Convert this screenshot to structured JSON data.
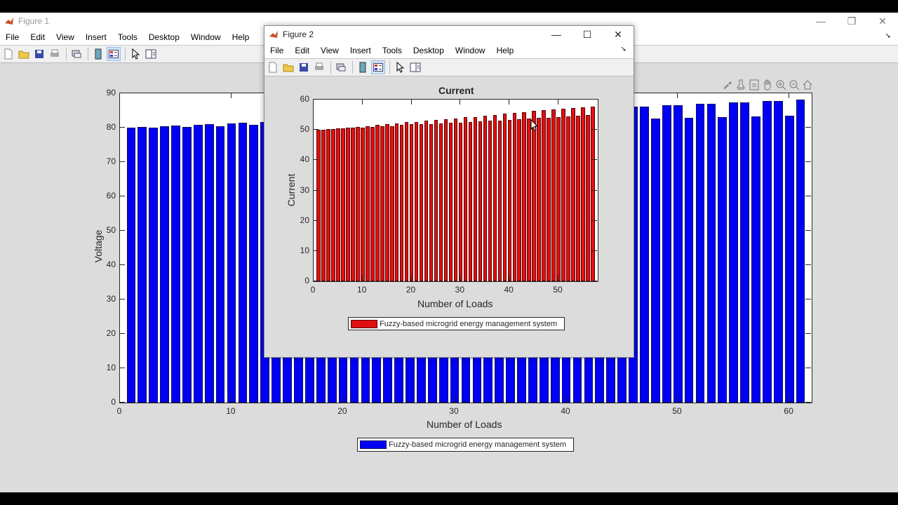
{
  "figure1": {
    "title": "Figure 1",
    "menu": [
      "File",
      "Edit",
      "View",
      "Insert",
      "Tools",
      "Desktop",
      "Window",
      "Help"
    ],
    "toolbar_icons": [
      "new-figure-icon",
      "open-icon",
      "save-icon",
      "print-icon",
      "link-plot-icon",
      "colorbar-icon",
      "legend-icon",
      "pointer-icon",
      "property-editor-icon"
    ],
    "axes_toolbar_icons": [
      "brush-icon",
      "data-cursor-icon",
      "link-icon",
      "pan-icon",
      "zoom-in-icon",
      "zoom-out-icon",
      "home-icon"
    ],
    "window_controls": {
      "minimize": "—",
      "restore": "❐",
      "close": "✕"
    },
    "ylabel": "Voltage",
    "xlabel": "Number of Loads",
    "yticks": [
      "0",
      "10",
      "20",
      "30",
      "40",
      "50",
      "60",
      "70",
      "80",
      "90"
    ],
    "xticks": [
      "0",
      "10",
      "20",
      "30",
      "40",
      "50",
      "60"
    ],
    "legend": "Fuzzy-based microgrid energy management system"
  },
  "figure2": {
    "title": "Figure 2",
    "menu": [
      "File",
      "Edit",
      "View",
      "Insert",
      "Tools",
      "Desktop",
      "Window",
      "Help"
    ],
    "toolbar_icons": [
      "new-figure-icon",
      "open-icon",
      "save-icon",
      "print-icon",
      "link-plot-icon",
      "colorbar-icon",
      "legend-icon",
      "pointer-icon",
      "property-editor-icon"
    ],
    "window_controls": {
      "minimize": "—",
      "maximize": "☐",
      "close": "✕"
    },
    "plot_title": "Current",
    "ylabel": "Current",
    "xlabel": "Number of Loads",
    "yticks": [
      "0",
      "10",
      "20",
      "30",
      "40",
      "50",
      "60"
    ],
    "xticks": [
      "0",
      "10",
      "20",
      "30",
      "40",
      "50"
    ],
    "legend": "Fuzzy-based microgrid energy management system"
  },
  "colors": {
    "voltage_bar": "#0000f5",
    "current_bar": "#e01010",
    "figure_bg": "#dcdcdc"
  },
  "chart_data": [
    {
      "type": "bar",
      "title": "",
      "xlabel": "Number of Loads",
      "ylabel": "Voltage",
      "xlim": [
        0,
        62
      ],
      "ylim": [
        0,
        90
      ],
      "grid": false,
      "legend_position": "below",
      "series": [
        {
          "name": "Fuzzy-based microgrid energy management system",
          "color": "#0000f5",
          "x": [
            1,
            2,
            3,
            4,
            5,
            6,
            7,
            8,
            9,
            10,
            11,
            12,
            13,
            14,
            15,
            16,
            17,
            18,
            19,
            20,
            21,
            22,
            23,
            24,
            25,
            26,
            27,
            28,
            29,
            30,
            31,
            32,
            33,
            34,
            35,
            36,
            37,
            38,
            39,
            40,
            41,
            42,
            43,
            44,
            45,
            46,
            47,
            48,
            49,
            50,
            51,
            52,
            53,
            54,
            55,
            56,
            57,
            58,
            59,
            60,
            61
          ],
          "values": [
            80.1,
            80.2,
            80.1,
            80.4,
            80.6,
            80.2,
            80.9,
            81.0,
            80.4,
            81.2,
            81.4,
            80.8,
            81.6,
            81.7,
            81.1,
            81.9,
            82.1,
            81.3,
            82.3,
            82.5,
            81.5,
            82.7,
            82.9,
            81.7,
            83.1,
            83.3,
            81.9,
            83.5,
            83.7,
            82.0,
            83.9,
            84.1,
            82.1,
            84.3,
            84.5,
            82.2,
            84.7,
            84.9,
            82.3,
            85.1,
            85.3,
            82.4,
            85.5,
            85.7,
            82.5,
            86.1,
            86.1,
            82.7,
            86.6,
            86.6,
            82.9,
            87.0,
            87.0,
            83.1,
            87.4,
            87.4,
            83.3,
            87.8,
            87.8,
            83.5,
            88.2
          ]
        }
      ]
    },
    {
      "type": "bar",
      "title": "Current",
      "xlabel": "Number of Loads",
      "ylabel": "Current",
      "xlim": [
        0,
        58
      ],
      "ylim": [
        0,
        60
      ],
      "grid": false,
      "legend_position": "below",
      "series": [
        {
          "name": "Fuzzy-based microgrid energy management system",
          "color": "#e01010",
          "x": [
            1,
            2,
            3,
            4,
            5,
            6,
            7,
            8,
            9,
            10,
            11,
            12,
            13,
            14,
            15,
            16,
            17,
            18,
            19,
            20,
            21,
            22,
            23,
            24,
            25,
            26,
            27,
            28,
            29,
            30,
            31,
            32,
            33,
            34,
            35,
            36,
            37,
            38,
            39,
            40,
            41,
            42,
            43,
            44,
            45,
            46,
            47,
            48,
            49,
            50,
            51,
            52,
            53,
            54,
            55,
            56,
            57
          ],
          "values": [
            50.1,
            50.1,
            50.3,
            50.3,
            50.5,
            50.5,
            50.8,
            50.7,
            51.0,
            50.8,
            51.2,
            51.0,
            51.6,
            51.1,
            51.8,
            51.3,
            52.1,
            51.6,
            52.5,
            51.8,
            52.7,
            51.9,
            53.0,
            52.0,
            53.3,
            52.2,
            53.5,
            52.3,
            53.8,
            52.4,
            54.1,
            52.7,
            54.3,
            52.8,
            54.6,
            53.0,
            54.9,
            53.1,
            55.3,
            53.3,
            55.6,
            53.5,
            55.9,
            53.7,
            56.2,
            53.9,
            56.5,
            54.0,
            56.7,
            54.3,
            57.0,
            54.5,
            57.2,
            54.7,
            57.4,
            54.9,
            57.6
          ]
        }
      ]
    }
  ]
}
